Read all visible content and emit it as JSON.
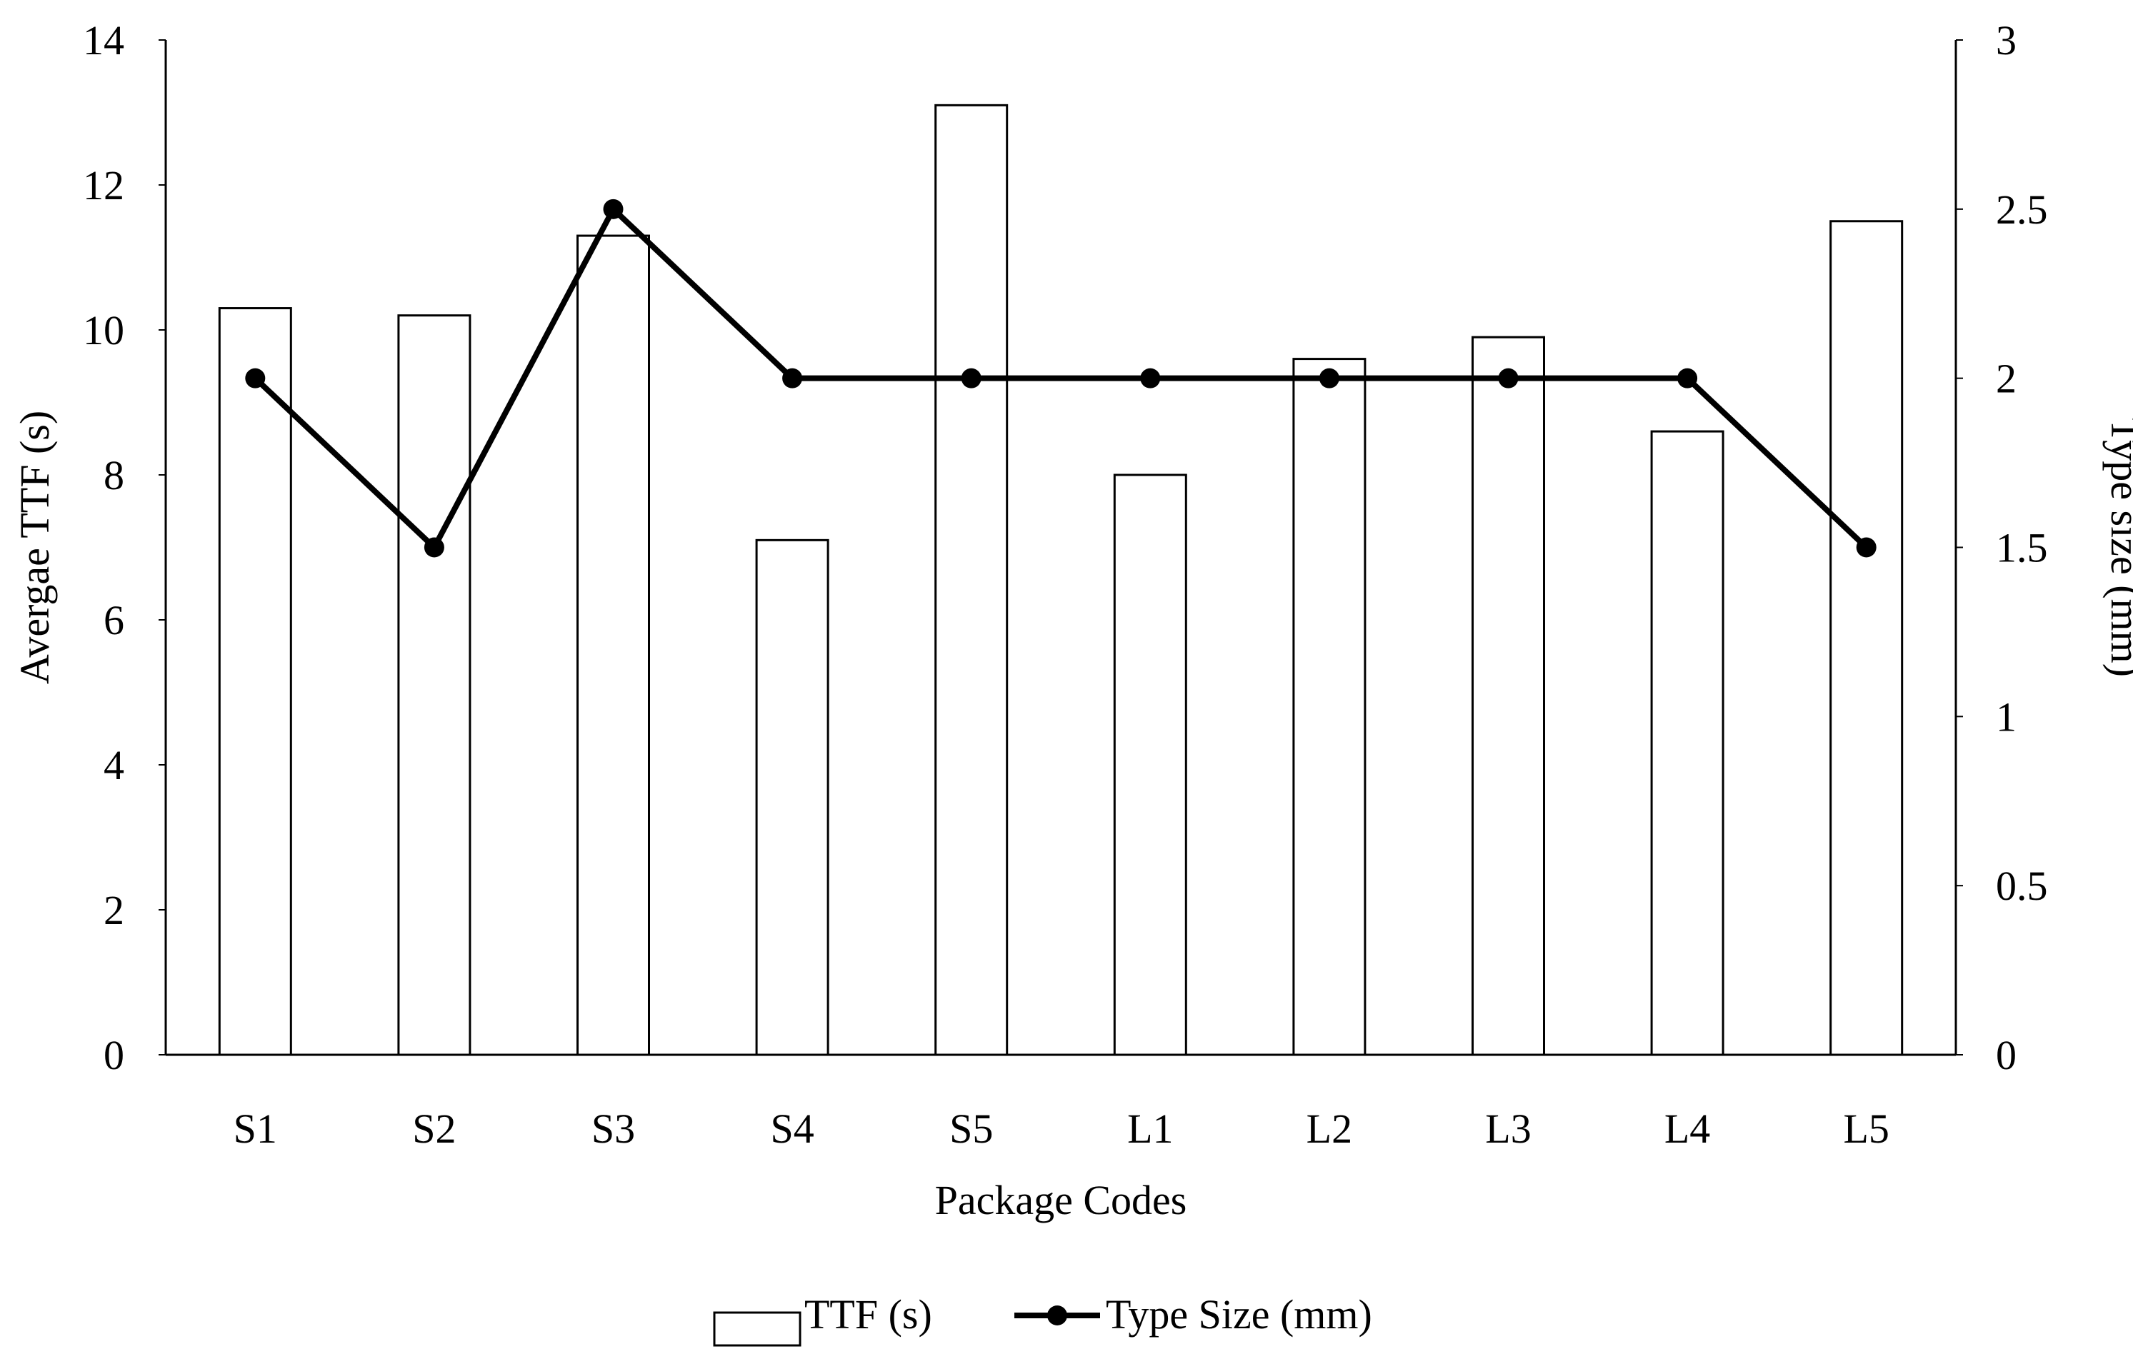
{
  "chart_data": {
    "type": "bar",
    "categories": [
      "S1",
      "S2",
      "S3",
      "S4",
      "S5",
      "L1",
      "L2",
      "L3",
      "L4",
      "L5"
    ],
    "xlabel": "Package Codes",
    "series": [
      {
        "name": "TTF (s)",
        "type": "bar",
        "axis": "left",
        "values": [
          10.3,
          10.2,
          11.3,
          7.1,
          13.1,
          8.0,
          9.6,
          9.9,
          8.6,
          11.5
        ]
      },
      {
        "name": "Type Size (mm)",
        "type": "line",
        "axis": "right",
        "values": [
          2,
          1.5,
          2.5,
          2,
          2,
          2,
          2,
          2,
          2,
          1.5
        ]
      }
    ],
    "y_left": {
      "label": "Avergae TTF (s)",
      "range": [
        0,
        14
      ],
      "ticks": [
        "0",
        "2",
        "4",
        "6",
        "8",
        "10",
        "12",
        "14"
      ]
    },
    "y_right": {
      "label": "Type size (mm)",
      "range": [
        0,
        3
      ],
      "ticks": [
        "0",
        "0.5",
        "1",
        "1.5",
        "2",
        "2.5",
        "3"
      ]
    },
    "grid": false,
    "legend_position": "bottom-center",
    "colors": {
      "bar_fill": "#ffffff",
      "bar_stroke": "#000000",
      "line": "#000000",
      "axis": "#000000"
    }
  }
}
